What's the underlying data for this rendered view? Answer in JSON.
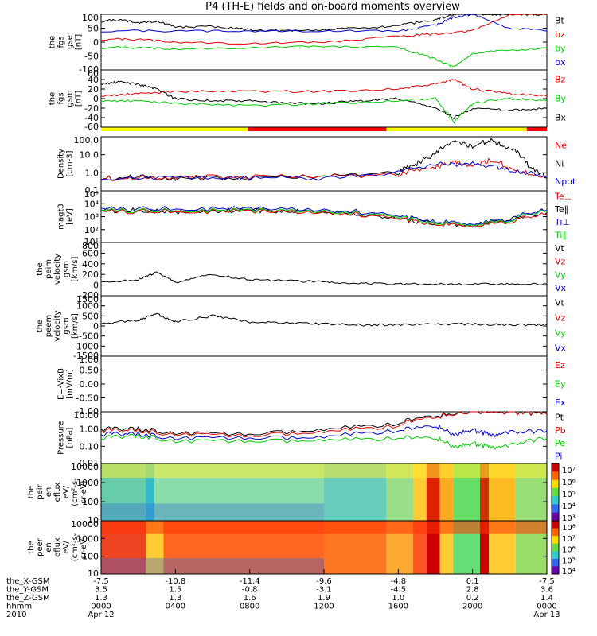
{
  "title": "P4 (TH-E) fields and on-board moments overview",
  "colors": {
    "black": "#000000",
    "red": "#e00000",
    "green": "#00cc00",
    "blue": "#0000cc",
    "yellow": "#ffff00",
    "barred": "#ff0000"
  },
  "panels": [
    {
      "ylabel": [
        "the",
        "fgs",
        "gse",
        "[nT]"
      ],
      "yticks": [
        "100",
        "50",
        "0",
        "-50",
        "-100"
      ],
      "legend": [
        {
          "label": "Bt",
          "color": "#000000"
        },
        {
          "label": "bz",
          "color": "#e00000"
        },
        {
          "label": "by",
          "color": "#00cc00"
        },
        {
          "label": "bx",
          "color": "#0000cc"
        }
      ]
    },
    {
      "ylabel": [
        "the",
        "fgs",
        "gsm",
        "[nT]"
      ],
      "yticks": [
        "60",
        "40",
        "20",
        "0",
        "-20",
        "-40",
        "-60"
      ],
      "legend": [
        {
          "label": "Bz",
          "color": "#e00000"
        },
        {
          "label": "By",
          "color": "#00cc00"
        },
        {
          "label": "Bx",
          "color": "#000000"
        }
      ]
    },
    {
      "ylabel": [
        "Density",
        "[cm-3]"
      ],
      "yticks": [
        "100.0",
        "10.0",
        "1.0",
        "0.1"
      ],
      "legend": [
        {
          "label": "Ne",
          "color": "#e00000"
        },
        {
          "label": "Ni",
          "color": "#000000"
        },
        {
          "label": "Npot",
          "color": "#0000cc"
        }
      ]
    },
    {
      "ylabel": [
        "magt3",
        "[eV]"
      ],
      "yticks": [
        "10⁵",
        "10⁴",
        "10³",
        "10²",
        "10¹"
      ],
      "legend": [
        {
          "label": "Te⊥",
          "color": "#e00000"
        },
        {
          "label": "Te∥",
          "color": "#000000"
        },
        {
          "label": "Ti⊥",
          "color": "#0000cc"
        },
        {
          "label": "Ti∥",
          "color": "#00cc00"
        }
      ]
    },
    {
      "ylabel": [
        "the",
        "peim",
        "velocity",
        "gsm",
        "[km/s]"
      ],
      "yticks": [
        "800",
        "600",
        "400",
        "200",
        "0",
        "-200"
      ],
      "legend": [
        {
          "label": "Vt",
          "color": "#000000"
        },
        {
          "label": "Vz",
          "color": "#e00000"
        },
        {
          "label": "Vy",
          "color": "#00cc00"
        },
        {
          "label": "Vx",
          "color": "#0000cc"
        }
      ]
    },
    {
      "ylabel": [
        "the",
        "peem",
        "velocity",
        "gsm",
        "[km/s]"
      ],
      "yticks": [
        "1500",
        "1000",
        "500",
        "0",
        "-500",
        "-1000",
        "-1500"
      ],
      "legend": [
        {
          "label": "Vt",
          "color": "#000000"
        },
        {
          "label": "Vz",
          "color": "#e00000"
        },
        {
          "label": "Vy",
          "color": "#00cc00"
        },
        {
          "label": "Vx",
          "color": "#0000cc"
        }
      ]
    },
    {
      "ylabel": [
        "E=-VixB",
        "[mV/m]"
      ],
      "yticks": [
        "1.00",
        "0.50",
        "0.00",
        "-0.50",
        "-1.00"
      ],
      "legend": [
        {
          "label": "Ez",
          "color": "#e00000"
        },
        {
          "label": "Ey",
          "color": "#00cc00"
        },
        {
          "label": "Ex",
          "color": "#0000cc"
        }
      ]
    },
    {
      "ylabel": [
        "Pressure",
        "[nPa]"
      ],
      "yticks": [
        "10.00",
        "1.00",
        "0.10",
        "0.01"
      ],
      "legend": [
        {
          "label": "Pt",
          "color": "#000000"
        },
        {
          "label": "Pb",
          "color": "#e00000"
        },
        {
          "label": "Pe",
          "color": "#00cc00"
        },
        {
          "label": "Pi",
          "color": "#0000cc"
        }
      ]
    },
    {
      "ylabel": [
        "the",
        "peir",
        "en",
        "eflux",
        "eV/",
        "(cm²-s-",
        "sr-eV)"
      ],
      "yticks": [
        "10000",
        "1000",
        "100",
        "10"
      ],
      "colorbar_ticks": [
        "10⁷",
        "10⁶",
        "10⁵",
        "10⁴",
        "10³"
      ]
    },
    {
      "ylabel": [
        "the",
        "peer",
        "en",
        "eflux",
        "eV/",
        "(cm²-s-",
        "sr-eV)"
      ],
      "yticks": [
        "10000",
        "1000",
        "100",
        "10"
      ],
      "colorbar_ticks": [
        "10⁸",
        "10⁷",
        "10⁶",
        "10⁵",
        "10⁴"
      ]
    }
  ],
  "xaxis": {
    "rows": [
      {
        "label": "the_X-GSM",
        "values": [
          "-7.5",
          "-10.8",
          "-11.4",
          "-9.6",
          "-4.8",
          "0.1",
          "-7.5"
        ]
      },
      {
        "label": "the_Y-GSM",
        "values": [
          "3.5",
          "1.5",
          "-0.8",
          "-3.1",
          "-4.5",
          "2.8",
          "3.6"
        ]
      },
      {
        "label": "the_Z-GSM",
        "values": [
          "1.3",
          "1.3",
          "1.6",
          "1.9",
          "1.0",
          "0.2",
          "1.4"
        ]
      },
      {
        "label": "hhmm",
        "values": [
          "0000",
          "0400",
          "0800",
          "1200",
          "1600",
          "2000",
          "0000"
        ]
      },
      {
        "label": "2010",
        "values": [
          "Apr 12",
          "",
          "",
          "",
          "",
          "",
          "Apr 13"
        ]
      }
    ]
  },
  "chart_data": {
    "type": "line",
    "title": "P4 (TH-E) fields and on-board moments overview",
    "x_label": "hhmm",
    "x_ticks": [
      "0000",
      "0400",
      "0800",
      "1200",
      "1600",
      "2000",
      "0000"
    ],
    "x_range_hours": [
      0,
      24
    ],
    "date_start": "2010 Apr 12",
    "date_end": "Apr 13",
    "panels": [
      {
        "name": "fgs gse",
        "units": "nT",
        "ylim": [
          -100,
          100
        ],
        "series": [
          {
            "name": "Bt",
            "x": [
              0,
              1,
              2,
              3,
              4,
              6,
              8,
              10,
              12,
              14,
              16,
              18,
              19,
              20,
              21,
              22,
              23,
              24
            ],
            "y": [
              75,
              80,
              70,
              75,
              55,
              55,
              45,
              40,
              45,
              50,
              60,
              80,
              100,
              100,
              100,
              100,
              100,
              100
            ]
          },
          {
            "name": "bz",
            "x": [
              0,
              2,
              4,
              8,
              12,
              16,
              18,
              20,
              22,
              24
            ],
            "y": [
              10,
              10,
              0,
              -5,
              0,
              20,
              30,
              40,
              100,
              100
            ]
          },
          {
            "name": "by",
            "x": [
              0,
              2,
              4,
              8,
              12,
              16,
              18,
              19,
              20,
              22,
              24
            ],
            "y": [
              -20,
              -20,
              -25,
              -20,
              -15,
              -20,
              -60,
              -90,
              -40,
              -30,
              -20
            ]
          },
          {
            "name": "bx",
            "x": [
              0,
              4,
              8,
              12,
              16,
              18,
              19,
              20,
              22,
              24
            ],
            "y": [
              40,
              40,
              40,
              40,
              40,
              60,
              90,
              100,
              50,
              40
            ]
          }
        ]
      },
      {
        "name": "fgs gsm",
        "units": "nT",
        "ylim": [
          -60,
          60
        ],
        "series": [
          {
            "name": "Bx",
            "x": [
              0,
              1,
              2,
              3,
              4,
              6,
              8,
              10,
              12,
              14,
              16,
              18,
              19,
              20,
              22,
              24
            ],
            "y": [
              30,
              35,
              30,
              20,
              0,
              -5,
              -5,
              -10,
              -10,
              -5,
              0,
              -20,
              -40,
              -20,
              -25,
              -20
            ]
          },
          {
            "name": "Bz",
            "x": [
              0,
              2,
              4,
              8,
              12,
              16,
              18,
              19,
              20,
              22,
              24
            ],
            "y": [
              5,
              10,
              15,
              15,
              15,
              20,
              30,
              40,
              20,
              10,
              5
            ]
          },
          {
            "name": "By",
            "x": [
              0,
              2,
              4,
              8,
              12,
              16,
              18,
              19,
              20,
              22,
              24
            ],
            "y": [
              -5,
              -5,
              -10,
              -15,
              -10,
              -5,
              0,
              -50,
              -10,
              0,
              -5
            ]
          }
        ]
      },
      {
        "name": "Density",
        "units": "cm-3",
        "log": true,
        "ylim": [
          0.1,
          100
        ],
        "series": [
          {
            "name": "Ni",
            "x": [
              0,
              2,
              4,
              8,
              12,
              16,
              17,
              18,
              19,
              20,
              21,
              22,
              23,
              24
            ],
            "y": [
              0.5,
              0.6,
              0.5,
              0.5,
              0.6,
              1.0,
              3.0,
              10,
              50,
              30,
              60,
              20,
              2,
              0.5
            ]
          },
          {
            "name": "Ne",
            "x": [
              0,
              2,
              4,
              8,
              12,
              16,
              18,
              19,
              20,
              21,
              22,
              24
            ],
            "y": [
              0.5,
              0.5,
              0.6,
              0.6,
              0.6,
              0.8,
              2,
              4,
              2,
              5,
              1.5,
              0.5
            ]
          },
          {
            "name": "Npot",
            "x": [
              0,
              4,
              8,
              12,
              16,
              18,
              20,
              22,
              24
            ],
            "y": [
              0.5,
              0.5,
              0.5,
              0.5,
              1.0,
              3,
              3,
              1.5,
              0.5
            ]
          }
        ]
      },
      {
        "name": "magt3",
        "units": "eV",
        "log": true,
        "ylim": [
          10,
          100000
        ],
        "series": [
          {
            "name": "Te∥",
            "x": [
              0,
              2,
              4,
              6,
              8,
              10,
              12,
              14,
              16,
              18,
              20,
              22,
              24
            ],
            "y": [
              3000,
              3000,
              2000,
              3000,
              3000,
              2500,
              2500,
              1500,
              600,
              300,
              200,
              500,
              2000
            ]
          },
          {
            "name": "Ti⊥",
            "x": [
              0,
              4,
              8,
              12,
              16,
              18,
              20,
              22,
              24
            ],
            "y": [
              4000,
              4000,
              4000,
              3500,
              1000,
              400,
              300,
              600,
              3000
            ]
          },
          {
            "name": "Te⊥",
            "x": [
              0,
              4,
              8,
              12,
              16,
              18,
              20,
              22,
              24
            ],
            "y": [
              2500,
              2500,
              2500,
              2200,
              600,
              250,
              200,
              400,
              1500
            ]
          },
          {
            "name": "Ti∥",
            "x": [
              0,
              4,
              8,
              12,
              16,
              18,
              20,
              22,
              24
            ],
            "y": [
              3000,
              3000,
              3000,
              2800,
              800,
              300,
              250,
              500,
              2500
            ]
          }
        ]
      },
      {
        "name": "peim velocity gsm",
        "units": "km/s",
        "ylim": [
          -200,
          800
        ],
        "series": [
          {
            "name": "Vt",
            "x": [
              0,
              2,
              3,
              4,
              6,
              8,
              10,
              12,
              14,
              16,
              18,
              20,
              22,
              24
            ],
            "y": [
              50,
              100,
              250,
              50,
              200,
              100,
              80,
              60,
              30,
              20,
              20,
              20,
              20,
              20
            ]
          }
        ]
      },
      {
        "name": "peem velocity gsm",
        "units": "km/s",
        "ylim": [
          -1500,
          1500
        ],
        "series": [
          {
            "name": "Vt",
            "x": [
              0,
              2,
              3,
              4,
              6,
              8,
              10,
              12,
              14,
              16,
              18,
              20,
              22,
              24
            ],
            "y": [
              100,
              300,
              600,
              200,
              500,
              200,
              150,
              100,
              50,
              50,
              100,
              100,
              50,
              50
            ]
          }
        ]
      },
      {
        "name": "E=-VixB",
        "units": "mV/m",
        "ylim": [
          -1,
          1
        ],
        "series": []
      },
      {
        "name": "Pressure",
        "units": "nPa",
        "log": true,
        "ylim": [
          0.01,
          10
        ],
        "series": [
          {
            "name": "Pt",
            "x": [
              0,
              2,
              4,
              8,
              12,
              16,
              18,
              20,
              22,
              24
            ],
            "y": [
              1.0,
              1.0,
              0.6,
              0.5,
              0.8,
              2.0,
              6.0,
              10,
              10,
              8
            ]
          },
          {
            "name": "Pb",
            "x": [
              0,
              2,
              4,
              8,
              12,
              16,
              18,
              20,
              22,
              24
            ],
            "y": [
              0.8,
              0.8,
              0.5,
              0.4,
              0.6,
              1.5,
              5.0,
              10,
              10,
              7
            ]
          },
          {
            "name": "Pe",
            "x": [
              0,
              2,
              4,
              8,
              12,
              16,
              18,
              19,
              20,
              21,
              22,
              24
            ],
            "y": [
              0.3,
              0.4,
              0.2,
              0.2,
              0.2,
              0.3,
              0.3,
              0.08,
              0.15,
              0.08,
              0.1,
              0.3
            ]
          },
          {
            "name": "Pi",
            "x": [
              0,
              2,
              4,
              8,
              12,
              16,
              18,
              19,
              20,
              21,
              22,
              24
            ],
            "y": [
              0.5,
              0.5,
              0.3,
              0.3,
              0.3,
              0.8,
              1.5,
              0.4,
              0.9,
              0.4,
              0.6,
              0.8
            ]
          }
        ]
      }
    ],
    "spectrograms": [
      {
        "name": "peir en eflux",
        "y_range": [
          10,
          10000
        ],
        "colorbar": [
          1000,
          10000000
        ]
      },
      {
        "name": "peer en eflux",
        "y_range": [
          10,
          10000
        ],
        "colorbar": [
          10000,
          100000000
        ]
      }
    ]
  }
}
